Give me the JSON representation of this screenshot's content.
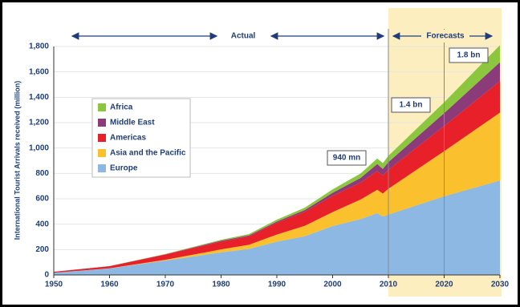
{
  "chart_data": {
    "type": "stacked_area",
    "y_label": "International Tourist Arrivals received (million)",
    "annotations": [
      "Actual",
      "Forecasts",
      "940 mn",
      "1.4 bn",
      "1.8 bn"
    ],
    "x": [
      1950,
      1960,
      1970,
      1980,
      1985,
      1990,
      1995,
      2000,
      2005,
      2008,
      2009,
      2010,
      2020,
      2030
    ],
    "series": [
      {
        "name": "Europe",
        "color": "#8db8e3",
        "values": [
          17,
          51,
          113,
          178,
          205,
          262,
          305,
          385,
          440,
          487,
          460,
          475,
          620,
          744
        ]
      },
      {
        "name": "Asia and the Pacific",
        "color": "#fbc02d",
        "values": [
          0.2,
          1,
          6,
          23,
          33,
          56,
          82,
          110,
          154,
          184,
          181,
          204,
          355,
          535
        ]
      },
      {
        "name": "Americas",
        "color": "#e8202a",
        "values": [
          7.5,
          16.7,
          42,
          62,
          66,
          93,
          110,
          128,
          133,
          148,
          141,
          150,
          199,
          248
        ]
      },
      {
        "name": "Middle East",
        "color": "#8b3a7a",
        "values": [
          0.2,
          0.6,
          2,
          7,
          8,
          10,
          14,
          24,
          37,
          55,
          53,
          60,
          101,
          149
        ]
      },
      {
        "name": "Africa",
        "color": "#8cc63f",
        "values": [
          0.5,
          0.8,
          2,
          7,
          10,
          15,
          19,
          27,
          35,
          44,
          46,
          50,
          85,
          134
        ]
      }
    ],
    "xlim": [
      1950,
      2030
    ],
    "xticks": [
      1950,
      1960,
      1970,
      1980,
      1990,
      2000,
      2010,
      2020,
      2030
    ],
    "ylim": [
      0,
      1800
    ],
    "yticks": [
      0,
      200,
      400,
      600,
      800,
      {
        "value": 1000,
        "label": "1,000"
      },
      {
        "value": 1200,
        "label": "1,200"
      },
      {
        "value": 1400,
        "label": "1,400"
      },
      {
        "value": 1600,
        "label": "1,600"
      },
      {
        "value": 1800,
        "label": "1,800"
      }
    ],
    "forecast_lines": [
      2010,
      2020
    ],
    "grid": true
  }
}
